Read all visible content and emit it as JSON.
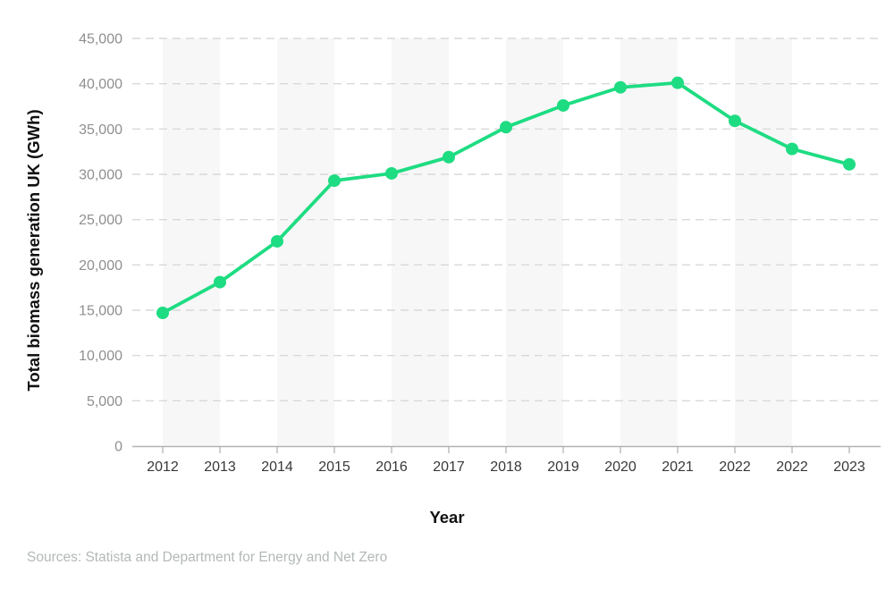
{
  "chart_data": {
    "type": "line",
    "title": "",
    "categories": [
      "2012",
      "2013",
      "2014",
      "2015",
      "2016",
      "2017",
      "2018",
      "2019",
      "2020",
      "2021",
      "2022",
      "2022",
      "2023"
    ],
    "series": [
      {
        "name": "Total biomass generation UK",
        "values": [
          14700,
          18100,
          22600,
          29300,
          30100,
          31900,
          35200,
          37600,
          39600,
          40100,
          35900,
          32800,
          31100
        ]
      }
    ],
    "xlabel": "Year",
    "ylabel": "Total biomass generation UK (GWh)",
    "ylim": [
      0,
      45000
    ],
    "ytick_step": 5000,
    "ytick_labels": [
      "0",
      "5,000",
      "10,000",
      "15,000",
      "20,000",
      "25,000",
      "30,000",
      "35,000",
      "40,000",
      "45,000"
    ],
    "grid": "horizontal-dashed",
    "legend_position": "none",
    "colors": {
      "line": "#1edc82",
      "marker": "#1edc82",
      "band": "#f7f7f7",
      "gridline": "#d9d9d9",
      "axis": "#b3b3b3",
      "ytick_text": "#8f8f8f",
      "xtick_text": "#383838",
      "axis_title_text": "#111111",
      "sources_text": "#b3b8b8"
    }
  },
  "footer": {
    "sources": "Sources: Statista and Department for Energy and Net Zero"
  }
}
